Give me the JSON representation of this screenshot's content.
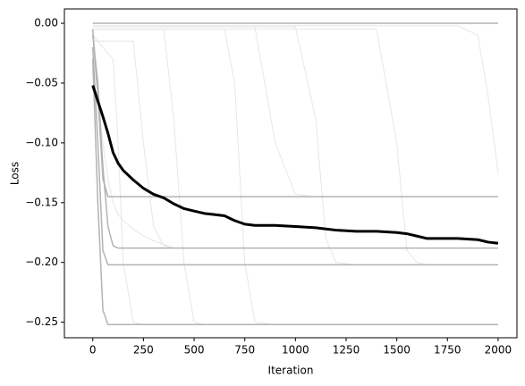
{
  "chart_data": {
    "type": "line",
    "x_label": "Iteration",
    "y_label": "Loss",
    "x": [
      0,
      25,
      50,
      75,
      100,
      125,
      150,
      200,
      250,
      300,
      350,
      400,
      450,
      500,
      550,
      600,
      650,
      700,
      750,
      800,
      900,
      1000,
      1100,
      1150,
      1200,
      1300,
      1400,
      1500,
      1550,
      1600,
      1650,
      1700,
      1800,
      1900,
      1950,
      2000
    ],
    "xlim": [
      -140,
      2093
    ],
    "ylim": [
      -0.263,
      0.012
    ],
    "xticks": [
      0,
      250,
      500,
      750,
      1000,
      1250,
      1500,
      1750,
      2000
    ],
    "yticks": [
      {
        "value": 0,
        "label": "0.00"
      },
      {
        "value": -0.05,
        "label": "−0.05"
      },
      {
        "value": -0.1,
        "label": "−0.10"
      },
      {
        "value": -0.15,
        "label": "−0.15"
      },
      {
        "value": -0.2,
        "label": "−0.20"
      },
      {
        "value": -0.25,
        "label": "−0.25"
      }
    ],
    "series": [
      {
        "color": "#e6e6e6",
        "width": 1,
        "values": [
          -0.005,
          -0.005,
          -0.005,
          -0.005,
          -0.005,
          -0.005,
          -0.005,
          -0.005,
          -0.005,
          -0.005,
          -0.005,
          -0.005,
          -0.005,
          -0.005,
          -0.005,
          -0.005,
          -0.005,
          -0.05,
          -0.2,
          -0.25,
          -0.252,
          -0.252,
          -0.252,
          -0.252,
          -0.252,
          -0.252,
          -0.252,
          -0.252,
          -0.252,
          -0.252,
          -0.252,
          -0.252,
          -0.252,
          -0.252,
          -0.252,
          -0.252
        ]
      },
      {
        "color": "#e6e6e6",
        "width": 1,
        "values": [
          -0.003,
          -0.003,
          -0.003,
          -0.003,
          -0.003,
          -0.003,
          -0.003,
          -0.003,
          -0.003,
          -0.003,
          -0.003,
          -0.003,
          -0.003,
          -0.003,
          -0.003,
          -0.003,
          -0.003,
          -0.003,
          -0.003,
          -0.003,
          -0.003,
          -0.003,
          -0.08,
          -0.18,
          -0.2,
          -0.202,
          -0.202,
          -0.202,
          -0.202,
          -0.202,
          -0.202,
          -0.202,
          -0.202,
          -0.202,
          -0.202,
          -0.202
        ]
      },
      {
        "color": "#e6e6e6",
        "width": 1,
        "values": [
          -0.005,
          -0.005,
          -0.005,
          -0.005,
          -0.005,
          -0.005,
          -0.005,
          -0.005,
          -0.005,
          -0.005,
          -0.005,
          -0.005,
          -0.005,
          -0.005,
          -0.005,
          -0.005,
          -0.005,
          -0.005,
          -0.005,
          -0.005,
          -0.005,
          -0.005,
          -0.005,
          -0.005,
          -0.005,
          -0.005,
          -0.005,
          -0.1,
          -0.19,
          -0.2,
          -0.202,
          -0.202,
          -0.202,
          -0.202,
          -0.202,
          -0.202
        ]
      },
      {
        "color": "#e6e6e6",
        "width": 1,
        "values": [
          -0.002,
          -0.002,
          -0.002,
          -0.002,
          -0.002,
          -0.002,
          -0.002,
          -0.002,
          -0.002,
          -0.002,
          -0.002,
          -0.002,
          -0.002,
          -0.002,
          -0.002,
          -0.002,
          -0.002,
          -0.002,
          -0.002,
          -0.002,
          -0.002,
          -0.002,
          -0.002,
          -0.002,
          -0.002,
          -0.002,
          -0.002,
          -0.002,
          -0.002,
          -0.002,
          -0.002,
          -0.002,
          -0.002,
          -0.01,
          -0.06,
          -0.125
        ]
      },
      {
        "color": "#e6e6e6",
        "width": 1,
        "values": [
          -0.015,
          -0.015,
          -0.015,
          -0.015,
          -0.015,
          -0.015,
          -0.015,
          -0.015,
          -0.1,
          -0.17,
          -0.186,
          -0.188,
          -0.188,
          -0.188,
          -0.188,
          -0.188,
          -0.188,
          -0.188,
          -0.188,
          -0.188,
          -0.188,
          -0.188,
          -0.188,
          -0.188,
          -0.188,
          -0.188,
          -0.188,
          -0.188,
          -0.188,
          -0.188,
          -0.188,
          -0.188,
          -0.188,
          -0.188,
          -0.188,
          -0.188
        ]
      },
      {
        "color": "#e6e6e6",
        "width": 1,
        "values": [
          -0.005,
          -0.005,
          -0.005,
          -0.005,
          -0.005,
          -0.005,
          -0.005,
          -0.005,
          -0.005,
          -0.005,
          -0.005,
          -0.08,
          -0.2,
          -0.25,
          -0.252,
          -0.252,
          -0.252,
          -0.252,
          -0.252,
          -0.252,
          -0.252,
          -0.252,
          -0.252,
          -0.252,
          -0.252,
          -0.252,
          -0.252,
          -0.252,
          -0.252,
          -0.252,
          -0.252,
          -0.252,
          -0.252,
          -0.252,
          -0.252,
          -0.252
        ]
      },
      {
        "color": "#e6e6e6",
        "width": 1,
        "values": [
          -0.003,
          -0.003,
          -0.003,
          -0.003,
          -0.003,
          -0.003,
          -0.003,
          -0.003,
          -0.003,
          -0.003,
          -0.003,
          -0.003,
          -0.003,
          -0.003,
          -0.003,
          -0.003,
          -0.003,
          -0.003,
          -0.003,
          -0.003,
          -0.1,
          -0.143,
          -0.145,
          -0.145,
          -0.145,
          -0.145,
          -0.145,
          -0.145,
          -0.145,
          -0.145,
          -0.145,
          -0.145,
          -0.145,
          -0.145,
          -0.145,
          -0.145
        ]
      },
      {
        "color": "#e6e6e6",
        "width": 1,
        "values": [
          -0.02,
          -0.06,
          -0.1,
          -0.13,
          -0.15,
          -0.16,
          -0.165,
          -0.172,
          -0.178,
          -0.182,
          -0.185,
          -0.188,
          -0.188,
          -0.188,
          -0.188,
          -0.188,
          -0.188,
          -0.188,
          -0.188,
          -0.188,
          -0.188,
          -0.188,
          -0.188,
          -0.188,
          -0.188,
          -0.188,
          -0.188,
          -0.188,
          -0.188,
          -0.188,
          -0.188,
          -0.188,
          -0.188,
          -0.188,
          -0.188,
          -0.188
        ]
      },
      {
        "color": "#e6e6e6",
        "width": 1,
        "values": [
          -0.01,
          -0.015,
          -0.02,
          -0.025,
          -0.03,
          -0.1,
          -0.2,
          -0.25,
          -0.252,
          -0.252,
          -0.252,
          -0.252,
          -0.252,
          -0.252,
          -0.252,
          -0.252,
          -0.252,
          -0.252,
          -0.252,
          -0.252,
          -0.252,
          -0.252,
          -0.252,
          -0.252,
          -0.252,
          -0.252,
          -0.252,
          -0.252,
          -0.252,
          -0.252,
          -0.252,
          -0.252,
          -0.252,
          -0.252,
          -0.252,
          -0.252
        ]
      },
      {
        "color": "#b3b3b3",
        "width": 1.5,
        "values": [
          0,
          0,
          0,
          0,
          0,
          0,
          0,
          0,
          0,
          0,
          0,
          0,
          0,
          0,
          0,
          0,
          0,
          0,
          0,
          0,
          0,
          0,
          0,
          0,
          0,
          0,
          0,
          0,
          0,
          0,
          0,
          0,
          0,
          0,
          0,
          0
        ]
      },
      {
        "color": "#b3b3b3",
        "width": 1.5,
        "values": [
          -0.005,
          -0.06,
          -0.13,
          -0.145,
          -0.145,
          -0.145,
          -0.145,
          -0.145,
          -0.145,
          -0.145,
          -0.145,
          -0.145,
          -0.145,
          -0.145,
          -0.145,
          -0.145,
          -0.145,
          -0.145,
          -0.145,
          -0.145,
          -0.145,
          -0.145,
          -0.145,
          -0.145,
          -0.145,
          -0.145,
          -0.145,
          -0.145,
          -0.145,
          -0.145,
          -0.145,
          -0.145,
          -0.145,
          -0.145,
          -0.145,
          -0.145
        ]
      },
      {
        "color": "#b3b3b3",
        "width": 1.5,
        "values": [
          -0.01,
          -0.05,
          -0.12,
          -0.17,
          -0.186,
          -0.188,
          -0.188,
          -0.188,
          -0.188,
          -0.188,
          -0.188,
          -0.188,
          -0.188,
          -0.188,
          -0.188,
          -0.188,
          -0.188,
          -0.188,
          -0.188,
          -0.188,
          -0.188,
          -0.188,
          -0.188,
          -0.188,
          -0.188,
          -0.188,
          -0.188,
          -0.188,
          -0.188,
          -0.188,
          -0.188,
          -0.188,
          -0.188,
          -0.188,
          -0.188,
          -0.188
        ]
      },
      {
        "color": "#b3b3b3",
        "width": 1.5,
        "values": [
          -0.02,
          -0.1,
          -0.19,
          -0.202,
          -0.202,
          -0.202,
          -0.202,
          -0.202,
          -0.202,
          -0.202,
          -0.202,
          -0.202,
          -0.202,
          -0.202,
          -0.202,
          -0.202,
          -0.202,
          -0.202,
          -0.202,
          -0.202,
          -0.202,
          -0.202,
          -0.202,
          -0.202,
          -0.202,
          -0.202,
          -0.202,
          -0.202,
          -0.202,
          -0.202,
          -0.202,
          -0.202,
          -0.202,
          -0.202,
          -0.202,
          -0.202
        ]
      },
      {
        "color": "#b3b3b3",
        "width": 1.5,
        "values": [
          -0.03,
          -0.15,
          -0.24,
          -0.252,
          -0.252,
          -0.252,
          -0.252,
          -0.252,
          -0.252,
          -0.252,
          -0.252,
          -0.252,
          -0.252,
          -0.252,
          -0.252,
          -0.252,
          -0.252,
          -0.252,
          -0.252,
          -0.252,
          -0.252,
          -0.252,
          -0.252,
          -0.252,
          -0.252,
          -0.252,
          -0.252,
          -0.252,
          -0.252,
          -0.252,
          -0.252,
          -0.252,
          -0.252,
          -0.252,
          -0.252,
          -0.252
        ]
      },
      {
        "color": "#000000",
        "width": 3,
        "values": [
          -0.052,
          -0.065,
          -0.078,
          -0.092,
          -0.108,
          -0.117,
          -0.123,
          -0.131,
          -0.138,
          -0.143,
          -0.146,
          -0.151,
          -0.155,
          -0.157,
          -0.159,
          -0.16,
          -0.161,
          -0.165,
          -0.168,
          -0.169,
          -0.169,
          -0.17,
          -0.171,
          -0.172,
          -0.173,
          -0.174,
          -0.174,
          -0.175,
          -0.176,
          -0.178,
          -0.18,
          -0.18,
          -0.18,
          -0.181,
          -0.183,
          -0.184
        ]
      }
    ]
  }
}
